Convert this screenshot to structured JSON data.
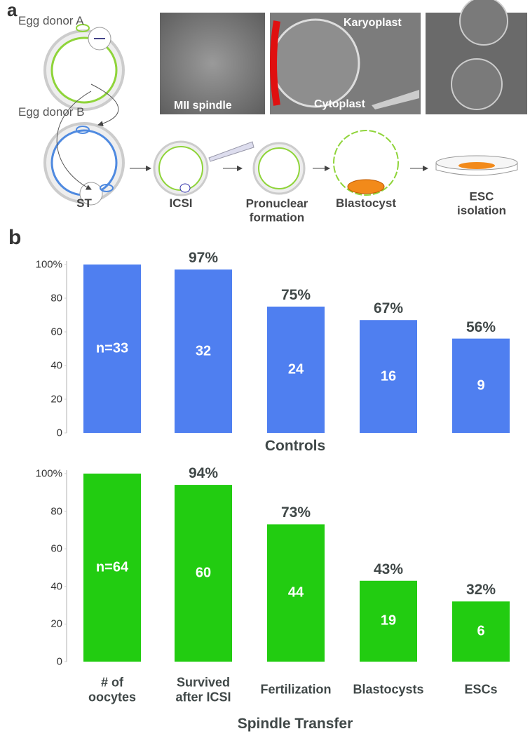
{
  "panel_a": {
    "label": "a",
    "donor_a": "Egg donor A",
    "donor_b": "Egg donor B",
    "photo_1": "MII spindle",
    "photo_2_top": "Karyoplast",
    "photo_2_bottom": "Cytoplast",
    "steps": [
      "ST",
      "ICSI",
      "Pronuclear\nformation",
      "Blastocyst",
      "ESC isolation"
    ]
  },
  "panel_b": {
    "label": "b"
  },
  "chart_data": [
    {
      "type": "bar",
      "x_label": "Controls",
      "color": "#4f7ff0",
      "values": [
        100,
        97,
        75,
        67,
        56
      ],
      "value_labels": [
        null,
        "97%",
        "75%",
        "67%",
        "56%"
      ],
      "counts": [
        33,
        32,
        24,
        16,
        9
      ],
      "count_labels": [
        "n=33",
        "32",
        "24",
        "16",
        "9"
      ],
      "ylim": [
        0,
        100
      ],
      "yticks": [
        0,
        20,
        40,
        60,
        80,
        {
          "value": 100,
          "label": "100%"
        }
      ]
    },
    {
      "type": "bar",
      "x_label": "Spindle Transfer",
      "color": "#22cc11",
      "categories": [
        "# of\noocytes",
        "Survived\nafter ICSI",
        "Fertilization",
        "Blastocysts",
        "ESCs"
      ],
      "values": [
        100,
        94,
        73,
        43,
        32
      ],
      "value_labels": [
        null,
        "94%",
        "73%",
        "43%",
        "32%"
      ],
      "counts": [
        64,
        60,
        44,
        19,
        6
      ],
      "count_labels": [
        "n=64",
        "60",
        "44",
        "19",
        "6"
      ],
      "ylim": [
        0,
        100
      ],
      "yticks": [
        0,
        20,
        40,
        60,
        80,
        {
          "value": 100,
          "label": "100%"
        }
      ]
    }
  ]
}
